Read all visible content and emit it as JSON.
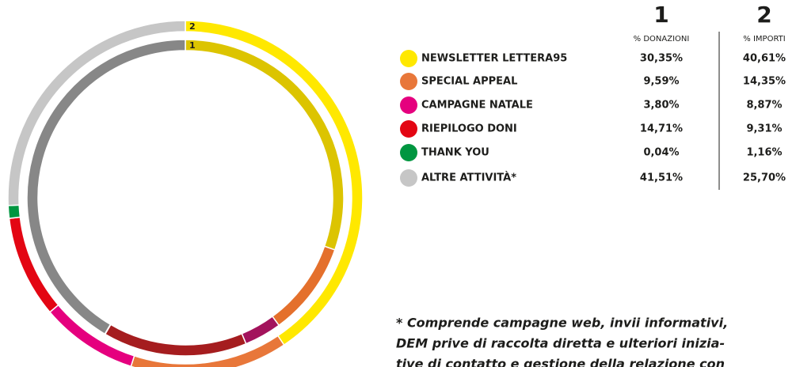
{
  "chart_data": {
    "type": "donut",
    "categories": [
      "NEWSLETTER LETTERA95",
      "SPECIAL APPEAL",
      "CAMPAGNE NATALE",
      "RIEPILOGO DONI",
      "THANK YOU",
      "ALTRE ATTIVITÀ*"
    ],
    "series": [
      {
        "name": "1",
        "label": "% DONAZIONI",
        "values": [
          30.35,
          9.59,
          3.8,
          14.71,
          0.04,
          41.51
        ],
        "value_labels": [
          "30,35%",
          "9,59%",
          "3,80%",
          "14,71%",
          "0,04%",
          "41,51%"
        ],
        "colors": [
          "#dcc400",
          "#e4702c",
          "#a3135c",
          "#a51d1f",
          "#1a8c3c",
          "#878787"
        ]
      },
      {
        "name": "2",
        "label": "% IMPORTI",
        "values": [
          40.61,
          14.35,
          8.87,
          9.31,
          1.16,
          25.7
        ],
        "value_labels": [
          "40,61%",
          "14,35%",
          "8,87%",
          "9,31%",
          "1,16%",
          "25,70%"
        ],
        "colors": [
          "#ffe800",
          "#e8773a",
          "#e5007e",
          "#e30613",
          "#009640",
          "#c6c6c6"
        ]
      }
    ],
    "note": [
      "* Comprende campagne web, invii informativi,",
      "DEM prive di raccolta diretta e ulteriori inizia-",
      "tive di contatto e gestione della relazione con"
    ]
  }
}
